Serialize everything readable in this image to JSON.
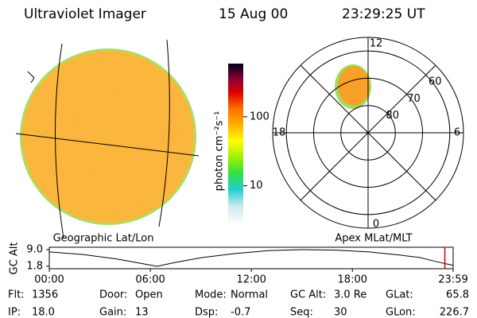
{
  "header": {
    "instrument": "Ultraviolet Imager",
    "date": "15 Aug 00",
    "time": "23:29:25 UT"
  },
  "colorbar": {
    "label": "photon cm⁻²s⁻¹",
    "scale": "log",
    "lim": [
      2.7,
      590
    ],
    "ticks": [
      10,
      100
    ]
  },
  "left_panel": {
    "label": "Geographic Lat/Lon"
  },
  "polar": {
    "label": "Apex MLat/MLT",
    "mlt_labels": [
      12,
      18,
      6,
      0
    ],
    "lat_rings": [
      80,
      70,
      60
    ],
    "rlim": [
      90,
      55
    ]
  },
  "altitude_plot": {
    "ylabel": "GC Alt",
    "ylim": [
      1.8,
      9.0
    ],
    "yticks": [
      {
        "value": 9,
        "label": "9.0"
      },
      1.8
    ],
    "xlim": [
      0,
      23.983
    ],
    "xticks": [
      {
        "value": 0,
        "label": "00:00"
      },
      {
        "value": 6,
        "label": "06:00"
      },
      {
        "value": 12,
        "label": "12:00"
      },
      {
        "value": 18,
        "label": "18:00"
      },
      {
        "value": 23.983,
        "label": "23:59"
      }
    ],
    "x": [
      0,
      2,
      4,
      5.5,
      6.4,
      7.5,
      9,
      11,
      13,
      15,
      17,
      19,
      21,
      22,
      23,
      23.49,
      23.983
    ],
    "values": [
      8.0,
      6.9,
      5.0,
      3.0,
      1.8,
      3.5,
      5.5,
      7.3,
      8.6,
      9.0,
      8.8,
      8.0,
      6.5,
      5.6,
      3.8,
      3.0,
      2.2
    ],
    "color": "#000000",
    "marker": 23.49,
    "marker_color": "#d00000"
  },
  "info": [
    [
      {
        "label": "Flt:",
        "value": "1356"
      },
      {
        "label": "Door:",
        "value": "Open"
      },
      {
        "label": "Mode:",
        "value": "Normal"
      },
      {
        "label": "GC Alt:",
        "value": "3.0 Re"
      },
      {
        "label": "GLat:",
        "value": "65.8"
      }
    ],
    [
      {
        "label": "IP:",
        "value": "18.0"
      },
      {
        "label": "Gain:",
        "value": "13"
      },
      {
        "label": "Dsp:",
        "value": "-0.7"
      },
      {
        "label": "Seq:",
        "value": "30"
      },
      {
        "label": "GLon:",
        "value": "226.7"
      }
    ]
  ]
}
